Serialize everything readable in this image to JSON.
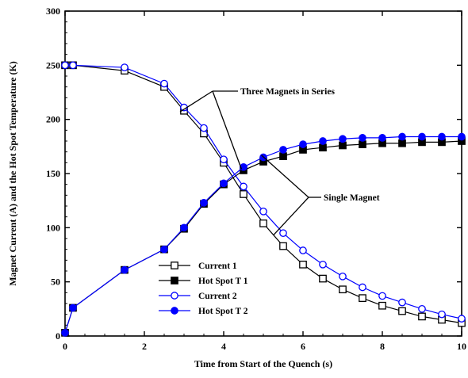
{
  "chart_data": {
    "type": "line",
    "xlabel": "Time from Start of the Quench (s)",
    "ylabel": "Magnet Current (A) and the Hot Spot Temperature (K)",
    "xlim": [
      0,
      10
    ],
    "ylim": [
      0,
      300
    ],
    "xticks": [
      0,
      2,
      4,
      6,
      8,
      10
    ],
    "yticks": [
      0,
      50,
      100,
      150,
      200,
      250,
      300
    ],
    "grid": false,
    "legend_position": "lower-left",
    "series": [
      {
        "name": "Current 1",
        "color": "#000000",
        "marker": "square-open",
        "x": [
          0,
          0.2,
          1.5,
          2.5,
          3.0,
          3.5,
          4.0,
          4.5,
          5.0,
          5.5,
          6.0,
          6.5,
          7.0,
          7.5,
          8.0,
          8.5,
          9.0,
          9.5,
          10.0
        ],
        "values": [
          250,
          250,
          245,
          230,
          208,
          187,
          160,
          131,
          104,
          83,
          66,
          53,
          43,
          35,
          28,
          23,
          18,
          15,
          12
        ]
      },
      {
        "name": "Hot Spot T 1",
        "color": "#000000",
        "marker": "square-filled",
        "x": [
          0,
          0.2,
          1.5,
          2.5,
          3.0,
          3.5,
          4.0,
          4.5,
          5.0,
          5.5,
          6.0,
          6.5,
          7.0,
          7.5,
          8.0,
          8.5,
          9.0,
          9.5,
          10.0
        ],
        "values": [
          3,
          26,
          61,
          80,
          99,
          122,
          140,
          153,
          161,
          166,
          172,
          174,
          176,
          177,
          178,
          178,
          179,
          179,
          180
        ]
      },
      {
        "name": "Current 2",
        "color": "#0000ff",
        "marker": "circle-open",
        "x": [
          0,
          0.2,
          1.5,
          2.5,
          3.0,
          3.5,
          4.0,
          4.5,
          5.0,
          5.5,
          6.0,
          6.5,
          7.0,
          7.5,
          8.0,
          8.5,
          9.0,
          9.5,
          10.0
        ],
        "values": [
          250,
          250,
          248,
          233,
          211,
          192,
          163,
          138,
          115,
          95,
          79,
          66,
          55,
          45,
          37,
          31,
          25,
          20,
          16
        ]
      },
      {
        "name": "Hot Spot T 2",
        "color": "#0000ff",
        "marker": "circle-filled",
        "x": [
          0,
          0.2,
          1.5,
          2.5,
          3.0,
          3.5,
          4.0,
          4.5,
          5.0,
          5.5,
          6.0,
          6.5,
          7.0,
          7.5,
          8.0,
          8.5,
          9.0,
          9.5,
          10.0
        ],
        "values": [
          3,
          26,
          61,
          80,
          100,
          123,
          141,
          156,
          165,
          172,
          177,
          180,
          182,
          183,
          183,
          184,
          184,
          184,
          184
        ]
      }
    ],
    "annotations": [
      {
        "text": "Three Magnets in Series",
        "arrow_targets": [
          [
            2.9,
            207
          ],
          [
            4.45,
            154
          ]
        ]
      },
      {
        "text": "Single Magnet",
        "arrow_targets": [
          [
            4.95,
            167
          ],
          [
            5.25,
            93
          ]
        ]
      }
    ]
  }
}
